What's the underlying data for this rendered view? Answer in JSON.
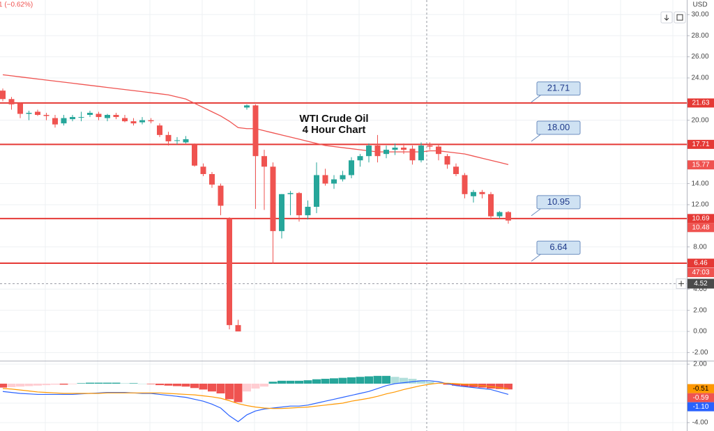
{
  "header": {
    "text": "1 (−0.62%)",
    "currency": "USD"
  },
  "chart_data": [
    {
      "type": "candlestick",
      "title": "WTI Crude Oil",
      "subtitle": "4 Hour Chart",
      "up_color": "#26a69a",
      "down_color": "#ef5350",
      "open": [
        22.8,
        22.0,
        21.6,
        20.6,
        20.8,
        20.5,
        20.2,
        19.7,
        20.1,
        20.3,
        20.5,
        20.6,
        20.2,
        20.5,
        20.2,
        19.9,
        19.8,
        20.0,
        19.5,
        18.6,
        18.1,
        17.9,
        17.7,
        15.6,
        14.9,
        13.8,
        10.7,
        0.6,
        21.2,
        21.4,
        16.6,
        15.6,
        9.5,
        13.0,
        13.1,
        11.0,
        11.8,
        14.8,
        14.0,
        14.4,
        14.8,
        16.2,
        16.6,
        17.6,
        16.8,
        17.2,
        17.4,
        17.3,
        16.2,
        17.6,
        17.5,
        16.6,
        15.6,
        14.8,
        12.8,
        13.2,
        13.0,
        10.9,
        11.3
      ],
      "high": [
        23.0,
        22.2,
        21.7,
        20.9,
        21.0,
        20.7,
        20.5,
        20.5,
        20.5,
        20.8,
        20.9,
        20.8,
        20.6,
        20.7,
        20.5,
        20.2,
        20.3,
        20.2,
        19.7,
        18.9,
        18.4,
        18.5,
        17.8,
        15.9,
        15.1,
        14.0,
        10.8,
        1.1,
        21.5,
        21.5,
        17.2,
        16.0,
        13.0,
        13.3,
        13.2,
        12.4,
        16.0,
        15.4,
        14.8,
        15.2,
        16.5,
        16.8,
        17.8,
        18.6,
        17.6,
        17.8,
        17.8,
        17.6,
        17.9,
        17.9,
        17.7,
        16.8,
        15.9,
        15.0,
        13.4,
        13.4,
        13.2,
        11.4,
        11.4
      ],
      "low": [
        21.8,
        21.0,
        20.2,
        20.0,
        20.4,
        20.0,
        19.3,
        19.5,
        19.9,
        19.9,
        20.3,
        20.0,
        19.9,
        20.1,
        19.8,
        19.5,
        19.6,
        19.7,
        18.4,
        17.6,
        17.7,
        17.8,
        15.6,
        14.7,
        13.6,
        11.0,
        0.2,
        0.0,
        21.0,
        11.6,
        11.5,
        6.4,
        8.8,
        11.0,
        10.4,
        10.6,
        11.2,
        13.8,
        13.5,
        14.2,
        14.5,
        15.6,
        16.0,
        16.0,
        16.4,
        16.7,
        16.8,
        15.8,
        16.0,
        17.2,
        16.2,
        15.4,
        14.7,
        12.6,
        12.2,
        12.6,
        10.6,
        10.7,
        10.2
      ],
      "close": [
        22.0,
        21.5,
        20.6,
        20.7,
        20.5,
        20.4,
        19.6,
        20.2,
        20.3,
        20.3,
        20.7,
        20.3,
        20.5,
        20.3,
        19.9,
        19.7,
        20.0,
        19.9,
        18.6,
        18.0,
        18.1,
        18.2,
        15.7,
        14.9,
        13.9,
        11.9,
        0.6,
        0.0,
        21.4,
        16.6,
        15.6,
        9.5,
        13.0,
        13.1,
        11.0,
        11.8,
        14.8,
        14.0,
        14.4,
        14.8,
        16.2,
        16.6,
        17.6,
        16.6,
        17.2,
        17.4,
        17.2,
        16.2,
        17.6,
        17.5,
        16.8,
        15.8,
        14.9,
        13.0,
        13.2,
        13.0,
        10.9,
        11.3,
        10.5
      ],
      "moving_average": {
        "color": "#ef5350",
        "values": [
          24.3,
          24.2,
          24.1,
          24.0,
          23.9,
          23.8,
          23.7,
          23.6,
          23.5,
          23.4,
          23.3,
          23.2,
          23.1,
          23.0,
          22.9,
          22.8,
          22.7,
          22.6,
          22.5,
          22.4,
          22.2,
          22.0,
          21.6,
          21.2,
          20.8,
          20.4,
          19.9,
          19.3,
          19.2,
          19.2,
          19.0,
          18.8,
          18.6,
          18.4,
          18.2,
          18.0,
          17.8,
          17.6,
          17.5,
          17.4,
          17.3,
          17.2,
          17.1,
          17.0,
          17.0,
          17.0,
          17.0,
          17.0,
          17.0,
          17.1,
          17.1,
          17.0,
          16.9,
          16.8,
          16.6,
          16.4,
          16.2,
          16.0,
          15.8
        ]
      },
      "ylim": [
        -2.77,
        31.38
      ],
      "yticks": [
        {
          "value": 30,
          "label": "30.00"
        },
        {
          "value": 28,
          "label": "28.00"
        },
        {
          "value": 26,
          "label": "26.00"
        },
        {
          "value": 24,
          "label": "24.00"
        },
        {
          "value": 20,
          "label": "20.00"
        },
        {
          "value": 14,
          "label": "14.00"
        },
        {
          "value": 12,
          "label": "12.00"
        },
        {
          "value": 8,
          "label": "8.00"
        },
        {
          "value": 4,
          "label": "4.00"
        },
        {
          "value": 2,
          "label": "2.00"
        },
        {
          "value": 0,
          "label": "0.00"
        },
        {
          "value": -2,
          "label": "-2.00"
        }
      ],
      "grid": true,
      "price_tags": [
        {
          "value": 21.63,
          "label": "21.63",
          "color": "#e53935",
          "line": true
        },
        {
          "value": 17.71,
          "label": "17.71",
          "color": "#e53935",
          "line": true
        },
        {
          "value": 15.77,
          "label": "15.77",
          "color": "#ef5350",
          "line": false
        },
        {
          "value": 10.69,
          "label": "10.69",
          "color": "#e53935",
          "line": true
        },
        {
          "value": 10.48,
          "label": "10.48",
          "color": "#ef5350",
          "line": false
        },
        {
          "value": 6.46,
          "label": "6.46",
          "color": "#e53935",
          "line": true
        }
      ],
      "countdown": "47:03",
      "callouts": [
        {
          "value": 21.71,
          "label": "21.71"
        },
        {
          "value": 18.0,
          "label": "18.00"
        },
        {
          "value": 10.95,
          "label": "10.95"
        },
        {
          "value": 6.64,
          "label": "6.64"
        }
      ],
      "crosshair": {
        "value": 4.52,
        "label": "4.52"
      }
    },
    {
      "type": "macd",
      "histogram": [
        -0.4,
        -0.35,
        -0.3,
        -0.25,
        -0.2,
        -0.15,
        -0.1,
        -0.1,
        -0.05,
        0.05,
        0.1,
        0.1,
        0.1,
        0.1,
        0.05,
        0.05,
        0.0,
        -0.05,
        -0.15,
        -0.2,
        -0.25,
        -0.3,
        -0.45,
        -0.6,
        -0.8,
        -1.0,
        -1.6,
        -1.9,
        -0.8,
        -0.5,
        -0.3,
        0.2,
        0.3,
        0.3,
        0.3,
        0.35,
        0.45,
        0.5,
        0.55,
        0.6,
        0.65,
        0.7,
        0.75,
        0.8,
        0.8,
        0.7,
        0.6,
        0.5,
        0.35,
        0.2,
        0.05,
        -0.1,
        -0.2,
        -0.3,
        -0.35,
        -0.4,
        -0.5,
        -0.55,
        -0.59
      ],
      "series": [
        {
          "color": "#2962ff",
          "values": [
            -0.8,
            -0.9,
            -1.0,
            -1.05,
            -1.1,
            -1.1,
            -1.1,
            -1.1,
            -1.1,
            -1.05,
            -1.0,
            -0.95,
            -0.9,
            -0.9,
            -0.9,
            -0.95,
            -1.0,
            -1.0,
            -1.1,
            -1.2,
            -1.3,
            -1.4,
            -1.6,
            -1.8,
            -2.1,
            -2.5,
            -3.3,
            -3.9,
            -3.2,
            -2.8,
            -2.6,
            -2.5,
            -2.4,
            -2.3,
            -2.3,
            -2.2,
            -2.0,
            -1.8,
            -1.6,
            -1.4,
            -1.2,
            -1.0,
            -0.8,
            -0.5,
            -0.2,
            0.0,
            0.1,
            0.2,
            0.3,
            0.3,
            0.2,
            0.0,
            -0.2,
            -0.3,
            -0.4,
            -0.5,
            -0.6,
            -0.85,
            -1.1
          ]
        },
        {
          "color": "#ff9800",
          "values": [
            -0.5,
            -0.55,
            -0.65,
            -0.75,
            -0.85,
            -0.9,
            -0.95,
            -1.0,
            -1.0,
            -1.0,
            -1.0,
            -1.0,
            -0.95,
            -0.95,
            -0.95,
            -0.95,
            -0.95,
            -0.95,
            -0.95,
            -1.0,
            -1.05,
            -1.1,
            -1.15,
            -1.25,
            -1.35,
            -1.5,
            -1.75,
            -2.05,
            -2.25,
            -2.4,
            -2.5,
            -2.55,
            -2.55,
            -2.5,
            -2.45,
            -2.4,
            -2.3,
            -2.2,
            -2.1,
            -2.0,
            -1.8,
            -1.65,
            -1.5,
            -1.3,
            -1.05,
            -0.85,
            -0.6,
            -0.4,
            -0.2,
            -0.05,
            0.05,
            0.05,
            0.0,
            -0.05,
            -0.1,
            -0.2,
            -0.3,
            -0.4,
            -0.51
          ]
        }
      ],
      "ylim": [
        -4.86,
        2.29
      ],
      "yticks": [
        {
          "value": 2,
          "label": "2.00"
        },
        {
          "value": -2,
          "label": "-2.00"
        },
        {
          "value": -4,
          "label": "-4.00"
        }
      ],
      "price_tags": [
        {
          "value": -0.51,
          "label": "-0.51",
          "color": "#ff9800"
        },
        {
          "value": -0.59,
          "label": "-0.59",
          "color": "#ef5350"
        },
        {
          "value": -1.1,
          "label": "-1.10",
          "color": "#2962ff"
        }
      ]
    }
  ]
}
